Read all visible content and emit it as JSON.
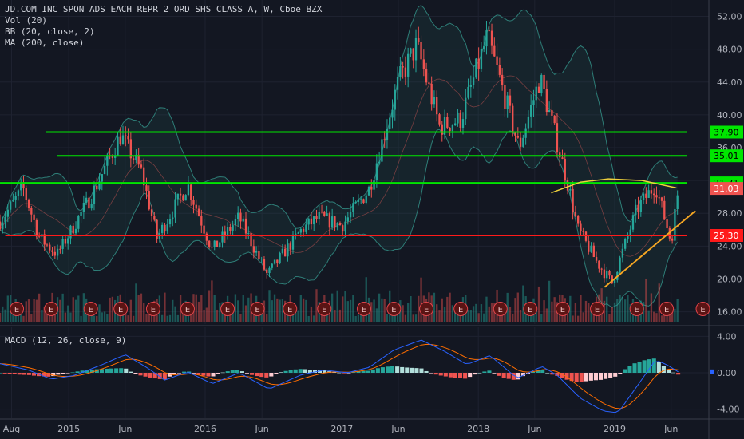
{
  "main_legend": {
    "title": "JD.COM INC SPON ADS EACH REPR 2 ORD SHS CLASS A, W, Cboe BZX",
    "vol": "Vol (20)",
    "bb": "BB (20, close, 2)",
    "ma": "MA (200, close)"
  },
  "macd_legend": "MACD (12, 26, close, 9)",
  "colors": {
    "background": "#131722",
    "up": "#26a69a",
    "down": "#ef5350",
    "green_line": "#00e600",
    "red_line": "#ff1a1a",
    "trend_line": "#f5a623",
    "ma_line": "#f0d23c",
    "bb_band": "#2e7d77",
    "macd_line": "#2962ff",
    "signal_line": "#ff6d00"
  },
  "chart_data": [
    {
      "type": "candlestick",
      "timeframe": "weekly",
      "ylim": [
        14.5,
        54
      ],
      "y_ticks": [
        16,
        20,
        24,
        28,
        32,
        36,
        40,
        44,
        48,
        52
      ],
      "x_ticks": [
        "Aug",
        "2015",
        "Jun",
        "2016",
        "Jun",
        "2017",
        "Jun",
        "2018",
        "Jun",
        "2019",
        "Jun"
      ],
      "x_tick_dates": [
        "2014-08-01",
        "2015-01-01",
        "2015-06-01",
        "2016-01-01",
        "2016-06-01",
        "2017-01-01",
        "2017-06-01",
        "2018-01-01",
        "2018-06-01",
        "2019-01-01",
        "2019-06-01"
      ],
      "x_range": [
        "2014-07-01",
        "2019-09-10"
      ],
      "price_path": [
        [
          "2014-07-01",
          27.0
        ],
        [
          "2014-09-01",
          31.0
        ],
        [
          "2014-10-15",
          25.0
        ],
        [
          "2014-12-01",
          23.0
        ],
        [
          "2015-03-01",
          30.0
        ],
        [
          "2015-05-20",
          37.5
        ],
        [
          "2015-07-15",
          33.0
        ],
        [
          "2015-08-25",
          25.0
        ],
        [
          "2015-11-15",
          31.5
        ],
        [
          "2016-01-20",
          23.5
        ],
        [
          "2016-04-01",
          27.5
        ],
        [
          "2016-06-15",
          20.5
        ],
        [
          "2016-09-15",
          26.0
        ],
        [
          "2016-11-01",
          27.5
        ],
        [
          "2017-01-01",
          26.5
        ],
        [
          "2017-03-15",
          31.0
        ],
        [
          "2017-06-01",
          44.0
        ],
        [
          "2017-07-20",
          48.5
        ],
        [
          "2017-09-20",
          38.5
        ],
        [
          "2017-11-15",
          39.5
        ],
        [
          "2018-01-25",
          49.5
        ],
        [
          "2018-03-20",
          41.0
        ],
        [
          "2018-04-20",
          36.0
        ],
        [
          "2018-06-15",
          44.5
        ],
        [
          "2018-07-20",
          38.5
        ],
        [
          "2018-09-01",
          31.0
        ],
        [
          "2018-09-25",
          26.0
        ],
        [
          "2018-11-15",
          22.0
        ],
        [
          "2018-12-25",
          19.5
        ],
        [
          "2019-03-01",
          28.5
        ],
        [
          "2019-04-20",
          31.5
        ],
        [
          "2019-06-01",
          24.5
        ],
        [
          "2019-06-20",
          31.0
        ]
      ],
      "horizontal_levels": [
        {
          "label": "37.90",
          "value": 37.9,
          "color": "#00e600",
          "from": "2014-11-01"
        },
        {
          "label": "35.01",
          "value": 35.01,
          "color": "#00e600",
          "from": "2014-12-01"
        },
        {
          "label": "31.71",
          "value": 31.71,
          "color": "#00e600",
          "from": "2014-07-01"
        },
        {
          "label": "25.30",
          "value": 25.3,
          "color": "#ff1a1a",
          "from": "2014-07-15"
        }
      ],
      "last_price": {
        "label": "31.03",
        "value": 31.03,
        "color": "#ef5350"
      },
      "trend_line": {
        "from": [
          "2018-12-05",
          19.0
        ],
        "to": [
          "2019-08-05",
          28.3
        ],
        "color": "#f5a623"
      },
      "ma_curve": [
        [
          "2018-07-15",
          30.5
        ],
        [
          "2018-10-01",
          31.8
        ],
        [
          "2018-12-15",
          32.2
        ],
        [
          "2019-03-15",
          32.0
        ],
        [
          "2019-06-15",
          31.1
        ]
      ],
      "earnings_dates": [
        "2014-08-15",
        "2014-11-15",
        "2015-03-01",
        "2015-05-20",
        "2015-08-15",
        "2015-11-15",
        "2016-03-01",
        "2016-05-20",
        "2016-08-15",
        "2016-11-15",
        "2017-03-01",
        "2017-05-20",
        "2017-08-15",
        "2017-11-15",
        "2018-03-01",
        "2018-05-20",
        "2018-08-15",
        "2018-11-15",
        "2019-03-01",
        "2019-05-20",
        "2019-08-25"
      ],
      "earnings_label": "E"
    },
    {
      "type": "line",
      "name": "MACD",
      "ylim": [
        -5,
        5
      ],
      "y_ticks": [
        "4.00",
        "0.00",
        "-4.00"
      ],
      "macd_path": [
        [
          "2014-07-01",
          1.0
        ],
        [
          "2014-09-15",
          0.3
        ],
        [
          "2014-11-15",
          -0.7
        ],
        [
          "2015-01-15",
          -0.3
        ],
        [
          "2015-04-01",
          0.9
        ],
        [
          "2015-06-01",
          2.0
        ],
        [
          "2015-08-01",
          0.5
        ],
        [
          "2015-09-15",
          -0.8
        ],
        [
          "2015-11-15",
          0.1
        ],
        [
          "2016-01-20",
          -1.2
        ],
        [
          "2016-04-01",
          0.0
        ],
        [
          "2016-06-20",
          -1.8
        ],
        [
          "2016-09-15",
          -0.2
        ],
        [
          "2016-11-15",
          0.3
        ],
        [
          "2017-01-15",
          0.0
        ],
        [
          "2017-03-15",
          0.6
        ],
        [
          "2017-05-20",
          2.5
        ],
        [
          "2017-08-01",
          3.6
        ],
        [
          "2017-10-01",
          2.4
        ],
        [
          "2017-12-01",
          0.9
        ],
        [
          "2018-02-01",
          1.9
        ],
        [
          "2018-04-15",
          -0.6
        ],
        [
          "2018-06-20",
          0.7
        ],
        [
          "2018-08-01",
          -0.3
        ],
        [
          "2018-10-01",
          -2.8
        ],
        [
          "2018-12-01",
          -4.2
        ],
        [
          "2019-01-10",
          -4.4
        ],
        [
          "2019-03-10",
          -1.0
        ],
        [
          "2019-04-20",
          1.4
        ],
        [
          "2019-05-20",
          0.9
        ],
        [
          "2019-06-20",
          0.1
        ]
      ],
      "hist_samples": 140
    }
  ]
}
